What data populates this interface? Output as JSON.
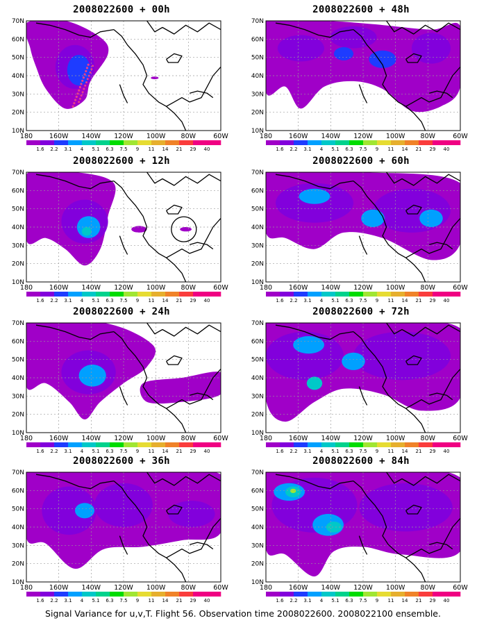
{
  "figure": {
    "caption": "Signal Variance for u,v,T. Flight 56. Observation time 2008022600. 2008022100 ensemble."
  },
  "axes": {
    "lat_labels": [
      "70N",
      "60N",
      "50N",
      "40N",
      "30N",
      "20N",
      "10N"
    ],
    "lon_labels": [
      "180",
      "160W",
      "140W",
      "120W",
      "100W",
      "80W",
      "60W"
    ]
  },
  "colorbar": {
    "labels": [
      "1.6",
      "2.2",
      "3.1",
      "4",
      "5.1",
      "6.3",
      "7.5",
      "9",
      "11",
      "14",
      "21",
      "29",
      "40"
    ],
    "colors": [
      "#a000c8",
      "#8200dc",
      "#1e3cff",
      "#00a0ff",
      "#00c8c8",
      "#00d28c",
      "#00dc00",
      "#a0e632",
      "#e6dc32",
      "#e6af2d",
      "#f08228",
      "#fa3c3c",
      "#f00082"
    ]
  },
  "panels": [
    {
      "id": "p00",
      "title": "2008022600 + 00h"
    },
    {
      "id": "p48",
      "title": "2008022600 + 48h"
    },
    {
      "id": "p12",
      "title": "2008022600 + 12h"
    },
    {
      "id": "p60",
      "title": "2008022600 + 60h"
    },
    {
      "id": "p24",
      "title": "2008022600 + 24h"
    },
    {
      "id": "p72",
      "title": "2008022600 + 72h"
    },
    {
      "id": "p36",
      "title": "2008022600 + 36h"
    },
    {
      "id": "p84",
      "title": "2008022600 + 84h"
    }
  ]
}
